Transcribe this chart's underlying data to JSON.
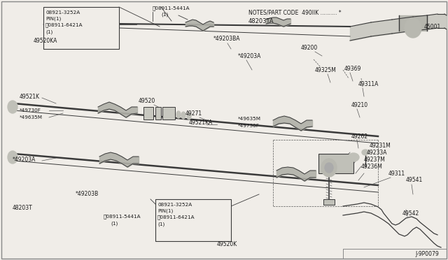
{
  "bg_color": "#f0ede8",
  "line_color": "#3a3a3a",
  "label_color": "#1a1a1a",
  "diagram_id": "J-9P0079",
  "notes_text": "NOTES/PART CODE  490llK .......... *",
  "ref_code": "48203TA",
  "fig_w": 6.4,
  "fig_h": 3.72,
  "dpi": 100
}
